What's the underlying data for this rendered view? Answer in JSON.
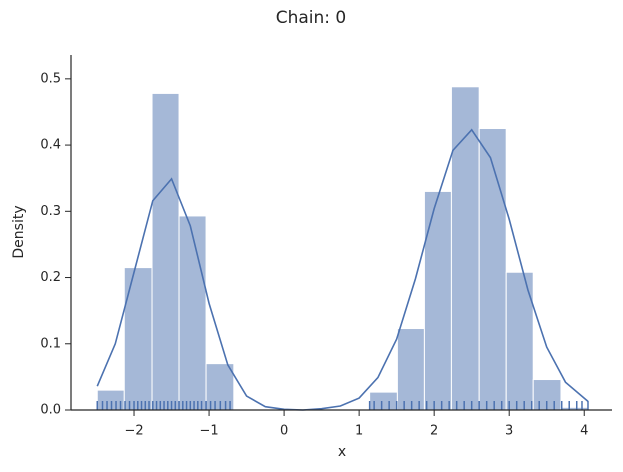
{
  "chart_data": {
    "type": "histogram",
    "title": "Chain: 0",
    "xlabel": "x",
    "ylabel": "Density",
    "color": "#4c72b0",
    "bins": [
      -2.49,
      -2.13,
      -1.76,
      -1.4,
      -1.04,
      -0.67,
      -0.31,
      0.05,
      0.42,
      0.78,
      1.14,
      1.51,
      1.87,
      2.23,
      2.6,
      2.96,
      3.32,
      3.69,
      4.05
    ],
    "counts": [
      0.03,
      0.215,
      0.478,
      0.293,
      0.07,
      0,
      0,
      0,
      0,
      0,
      0.027,
      0.123,
      0.33,
      0.488,
      0.425,
      0.208,
      0.046,
      0.004
    ],
    "kde": {
      "x": [
        -2.49,
        -2.25,
        -2.0,
        -1.75,
        -1.5,
        -1.25,
        -1.0,
        -0.75,
        -0.5,
        -0.25,
        0,
        0.25,
        0.5,
        0.75,
        1.0,
        1.25,
        1.5,
        1.75,
        2.0,
        2.25,
        2.5,
        2.75,
        3.0,
        3.25,
        3.5,
        3.75,
        4.05
      ],
      "values": [
        0.036,
        0.1,
        0.208,
        0.316,
        0.349,
        0.278,
        0.161,
        0.068,
        0.021,
        0.005,
        0.001,
        0.0,
        0.002,
        0.006,
        0.018,
        0.049,
        0.107,
        0.198,
        0.304,
        0.392,
        0.423,
        0.381,
        0.288,
        0.181,
        0.095,
        0.042,
        0.013
      ]
    },
    "rug": [
      -2.49,
      -2.42,
      -2.36,
      -2.3,
      -2.24,
      -2.18,
      -2.12,
      -2.06,
      -2.0,
      -1.95,
      -1.9,
      -1.85,
      -1.8,
      -1.75,
      -1.7,
      -1.65,
      -1.6,
      -1.55,
      -1.5,
      -1.45,
      -1.4,
      -1.35,
      -1.3,
      -1.25,
      -1.2,
      -1.15,
      -1.1,
      -1.04,
      -0.98,
      -0.92,
      -0.85,
      -0.78,
      -0.72,
      1.14,
      1.2,
      1.3,
      1.4,
      1.5,
      1.6,
      1.7,
      1.8,
      1.9,
      2.0,
      2.1,
      2.2,
      2.3,
      2.4,
      2.5,
      2.6,
      2.7,
      2.8,
      2.9,
      3.0,
      3.1,
      3.2,
      3.3,
      3.4,
      3.5,
      3.6,
      3.7,
      3.8,
      3.9,
      3.97,
      4.05
    ],
    "xlim": [
      -2.84,
      4.37
    ],
    "ylim": [
      0,
      0.536
    ],
    "xticks": [
      {
        "value": -2,
        "label": "−2"
      },
      {
        "value": -1,
        "label": "−1"
      },
      0,
      1,
      2,
      3,
      4
    ],
    "yticks": [
      {
        "value": 0,
        "label": "0.0"
      },
      0.1,
      0.2,
      0.3,
      0.4,
      0.5
    ]
  }
}
